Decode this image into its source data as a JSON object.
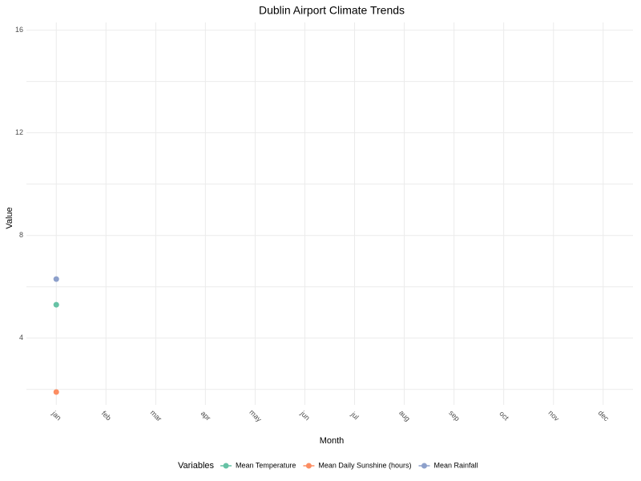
{
  "chart_data": {
    "type": "line",
    "title": "Dublin Airport Climate Trends",
    "x_label": "Month",
    "y_label": "Value",
    "legend_title": "Variables",
    "legend_position": "bottom",
    "categories": [
      "jan",
      "feb",
      "mar",
      "apr",
      "may",
      "jun",
      "jul",
      "aug",
      "sep",
      "oct",
      "nov",
      "dec"
    ],
    "series": [
      {
        "name": "Mean Temperature",
        "color": "#66c2a5",
        "values": [
          5.3,
          null,
          null,
          null,
          null,
          null,
          null,
          null,
          null,
          null,
          null,
          null
        ]
      },
      {
        "name": "Mean Daily Sunshine (hours)",
        "color": "#fc8d62",
        "values": [
          1.9,
          null,
          null,
          null,
          null,
          null,
          null,
          null,
          null,
          null,
          null,
          null
        ]
      },
      {
        "name": "Mean Rainfall",
        "color": "#8da0cb",
        "values": [
          6.3,
          null,
          null,
          null,
          null,
          null,
          null,
          null,
          null,
          null,
          null,
          null
        ]
      }
    ],
    "ylim": [
      1.4,
      16.3
    ],
    "yticks": [
      4,
      8,
      12,
      16
    ],
    "minor_yticks": [
      2,
      6,
      10,
      14
    ],
    "grid": true
  }
}
